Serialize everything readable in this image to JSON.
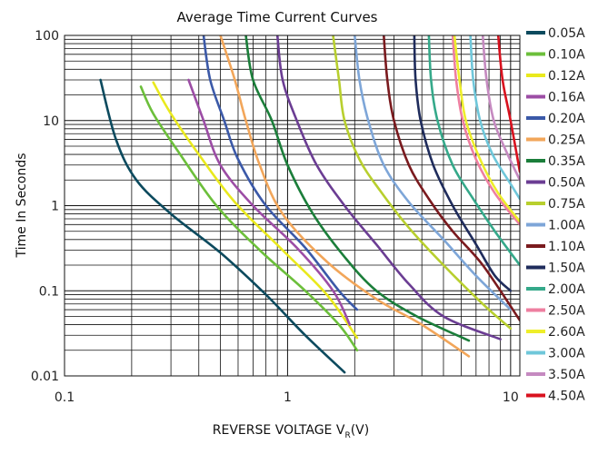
{
  "chart_data": {
    "type": "line",
    "title": "Average Time Current Curves",
    "xlabel": {
      "main": "REVERSE VOLTAGE  V",
      "subscript": "R",
      "suffix": "(V)"
    },
    "ylabel": "Time In Seconds",
    "x_scale": "log",
    "y_scale": "log",
    "xlim": [
      0.1,
      11
    ],
    "ylim": [
      0.01,
      100
    ],
    "x_ticks": [
      {
        "value": 0.1,
        "label": "0.1"
      },
      {
        "value": 1,
        "label": "1"
      },
      {
        "value": 10,
        "label": "10"
      }
    ],
    "y_ticks": [
      {
        "value": 100,
        "label": "100"
      },
      {
        "value": 10,
        "label": "10"
      },
      {
        "value": 1,
        "label": "1"
      },
      {
        "value": 0.1,
        "label": "0.1"
      },
      {
        "value": 0.01,
        "label": "0.01"
      }
    ],
    "grid": true,
    "legend_position": "right",
    "series": [
      {
        "name": "0.05A",
        "color": "#0c4a5e",
        "points": [
          [
            0.145,
            30
          ],
          [
            0.17,
            6
          ],
          [
            0.21,
            2
          ],
          [
            0.3,
            0.8
          ],
          [
            0.5,
            0.28
          ],
          [
            0.8,
            0.09
          ],
          [
            1.2,
            0.03
          ],
          [
            1.8,
            0.011
          ]
        ]
      },
      {
        "name": "0.10A",
        "color": "#6cbf3b",
        "points": [
          [
            0.22,
            25
          ],
          [
            0.25,
            12
          ],
          [
            0.33,
            4
          ],
          [
            0.48,
            1
          ],
          [
            0.75,
            0.3
          ],
          [
            1.2,
            0.1
          ],
          [
            1.7,
            0.04
          ],
          [
            2.05,
            0.02
          ]
        ]
      },
      {
        "name": "0.12A",
        "color": "#e9e91d",
        "points": [
          [
            0.25,
            28
          ],
          [
            0.3,
            12
          ],
          [
            0.4,
            4
          ],
          [
            0.58,
            1.1
          ],
          [
            0.95,
            0.3
          ],
          [
            1.5,
            0.09
          ],
          [
            2.05,
            0.028
          ]
        ]
      },
      {
        "name": "0.16A",
        "color": "#9c4da5",
        "points": [
          [
            0.36,
            30
          ],
          [
            0.42,
            10
          ],
          [
            0.5,
            3
          ],
          [
            0.7,
            1
          ],
          [
            1.1,
            0.32
          ],
          [
            1.6,
            0.1
          ],
          [
            1.9,
            0.04
          ]
        ]
      },
      {
        "name": "0.20A",
        "color": "#3b59a8",
        "points": [
          [
            0.42,
            100
          ],
          [
            0.45,
            30
          ],
          [
            0.52,
            10
          ],
          [
            0.6,
            3.5
          ],
          [
            0.8,
            1
          ],
          [
            1.2,
            0.32
          ],
          [
            1.7,
            0.1
          ],
          [
            2.05,
            0.06
          ]
        ]
      },
      {
        "name": "0.25A",
        "color": "#f2a65a",
        "points": [
          [
            0.5,
            100
          ],
          [
            0.58,
            30
          ],
          [
            0.65,
            10
          ],
          [
            0.75,
            3
          ],
          [
            0.95,
            0.8
          ],
          [
            1.5,
            0.22
          ],
          [
            2.5,
            0.08
          ],
          [
            4,
            0.04
          ],
          [
            6.5,
            0.017
          ]
        ]
      },
      {
        "name": "0.35A",
        "color": "#1b7e3a",
        "points": [
          [
            0.65,
            100
          ],
          [
            0.7,
            30
          ],
          [
            0.85,
            10
          ],
          [
            1,
            3
          ],
          [
            1.3,
            0.8
          ],
          [
            1.8,
            0.25
          ],
          [
            2.5,
            0.1
          ],
          [
            3.8,
            0.05
          ],
          [
            6.5,
            0.026
          ]
        ]
      },
      {
        "name": "0.50A",
        "color": "#6b3d93",
        "points": [
          [
            0.9,
            100
          ],
          [
            0.95,
            30
          ],
          [
            1.1,
            10
          ],
          [
            1.35,
            3
          ],
          [
            1.8,
            1
          ],
          [
            2.5,
            0.35
          ],
          [
            3.5,
            0.12
          ],
          [
            5,
            0.05
          ],
          [
            9,
            0.027
          ]
        ]
      },
      {
        "name": "0.75A",
        "color": "#b8cf2e",
        "points": [
          [
            1.6,
            100
          ],
          [
            1.7,
            30
          ],
          [
            1.8,
            10
          ],
          [
            2.1,
            3.5
          ],
          [
            2.6,
            1.5
          ],
          [
            3.5,
            0.55
          ],
          [
            5,
            0.2
          ],
          [
            7.5,
            0.07
          ],
          [
            10,
            0.036
          ]
        ]
      },
      {
        "name": "1.00A",
        "color": "#7ea6d8",
        "points": [
          [
            2,
            100
          ],
          [
            2.1,
            30
          ],
          [
            2.3,
            10
          ],
          [
            2.7,
            3
          ],
          [
            3.5,
            1.1
          ],
          [
            5,
            0.4
          ],
          [
            7,
            0.15
          ],
          [
            10,
            0.06
          ]
        ]
      },
      {
        "name": "1.10A",
        "color": "#7a1a1e",
        "points": [
          [
            2.7,
            100
          ],
          [
            2.8,
            30
          ],
          [
            3.0,
            10
          ],
          [
            3.5,
            3
          ],
          [
            4.3,
            1.2
          ],
          [
            5.5,
            0.5
          ],
          [
            7.5,
            0.2
          ],
          [
            11,
            0.045
          ]
        ]
      },
      {
        "name": "1.50A",
        "color": "#1f2c5c",
        "points": [
          [
            3.7,
            100
          ],
          [
            3.75,
            30
          ],
          [
            3.95,
            10
          ],
          [
            4.5,
            3
          ],
          [
            5.5,
            1
          ],
          [
            7,
            0.35
          ],
          [
            8.5,
            0.15
          ],
          [
            10,
            0.1
          ]
        ]
      },
      {
        "name": "2.00A",
        "color": "#35a98a",
        "points": [
          [
            4.3,
            100
          ],
          [
            4.4,
            30
          ],
          [
            4.7,
            10
          ],
          [
            5.5,
            3
          ],
          [
            6.8,
            1.2
          ],
          [
            8.5,
            0.5
          ],
          [
            11,
            0.2
          ]
        ]
      },
      {
        "name": "2.50A",
        "color": "#ee7fa0",
        "points": [
          [
            5.5,
            100
          ],
          [
            5.7,
            30
          ],
          [
            6.1,
            10
          ],
          [
            7,
            3.5
          ],
          [
            8.5,
            1.4
          ],
          [
            11,
            0.6
          ]
        ]
      },
      {
        "name": "2.60A",
        "color": "#eeee2a",
        "points": [
          [
            5.6,
            100
          ],
          [
            5.9,
            30
          ],
          [
            6.3,
            10
          ],
          [
            7.3,
            3.5
          ],
          [
            8.8,
            1.4
          ],
          [
            11,
            0.65
          ]
        ]
      },
      {
        "name": "3.00A",
        "color": "#6fc7da",
        "points": [
          [
            6.6,
            100
          ],
          [
            6.8,
            30
          ],
          [
            7.3,
            10
          ],
          [
            8.3,
            4
          ],
          [
            10,
            1.8
          ],
          [
            11,
            1.2
          ]
        ]
      },
      {
        "name": "3.50A",
        "color": "#c58ac0",
        "points": [
          [
            7.5,
            100
          ],
          [
            7.8,
            30
          ],
          [
            8.4,
            10
          ],
          [
            9.5,
            4.5
          ],
          [
            11,
            2
          ]
        ]
      },
      {
        "name": "4.50A",
        "color": "#d9121f",
        "points": [
          [
            8.8,
            100
          ],
          [
            9.2,
            30
          ],
          [
            10,
            10
          ],
          [
            11,
            2.5
          ]
        ]
      }
    ]
  }
}
